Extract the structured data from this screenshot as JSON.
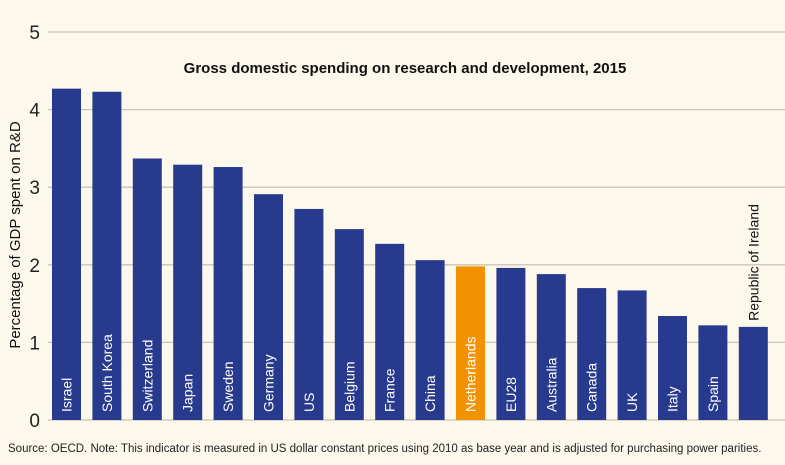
{
  "chart_data": {
    "type": "bar",
    "title": "Gross domestic spending on research and development, 2015",
    "ylabel": "Percentage of GDP spent on R&D",
    "xlabel": "",
    "ylim": [
      0,
      5
    ],
    "yticks": [
      "0",
      "1",
      "2",
      "3",
      "4",
      "5"
    ],
    "grid": true,
    "categories": [
      "Israel",
      "South Korea",
      "Switzerland",
      "Japan",
      "Sweden",
      "Germany",
      "US",
      "Belgium",
      "France",
      "China",
      "Netherlands",
      "EU28",
      "Australia",
      "Canada",
      "UK",
      "Italy",
      "Spain",
      "Republic of Ireland"
    ],
    "values": [
      4.27,
      4.23,
      3.37,
      3.29,
      3.26,
      2.91,
      2.72,
      2.46,
      2.27,
      2.06,
      1.98,
      1.96,
      1.88,
      1.7,
      1.67,
      1.34,
      1.22,
      1.2
    ],
    "highlight": "Netherlands",
    "colors": {
      "bar": "#283a8e",
      "highlight": "#f39200",
      "grid": "#c9c5b4",
      "background": "#fdf8ec"
    }
  },
  "source": "Source: OECD. Note: This indicator is measured in US dollar constant prices using 2010 as base year and is adjusted for purchasing power parities."
}
